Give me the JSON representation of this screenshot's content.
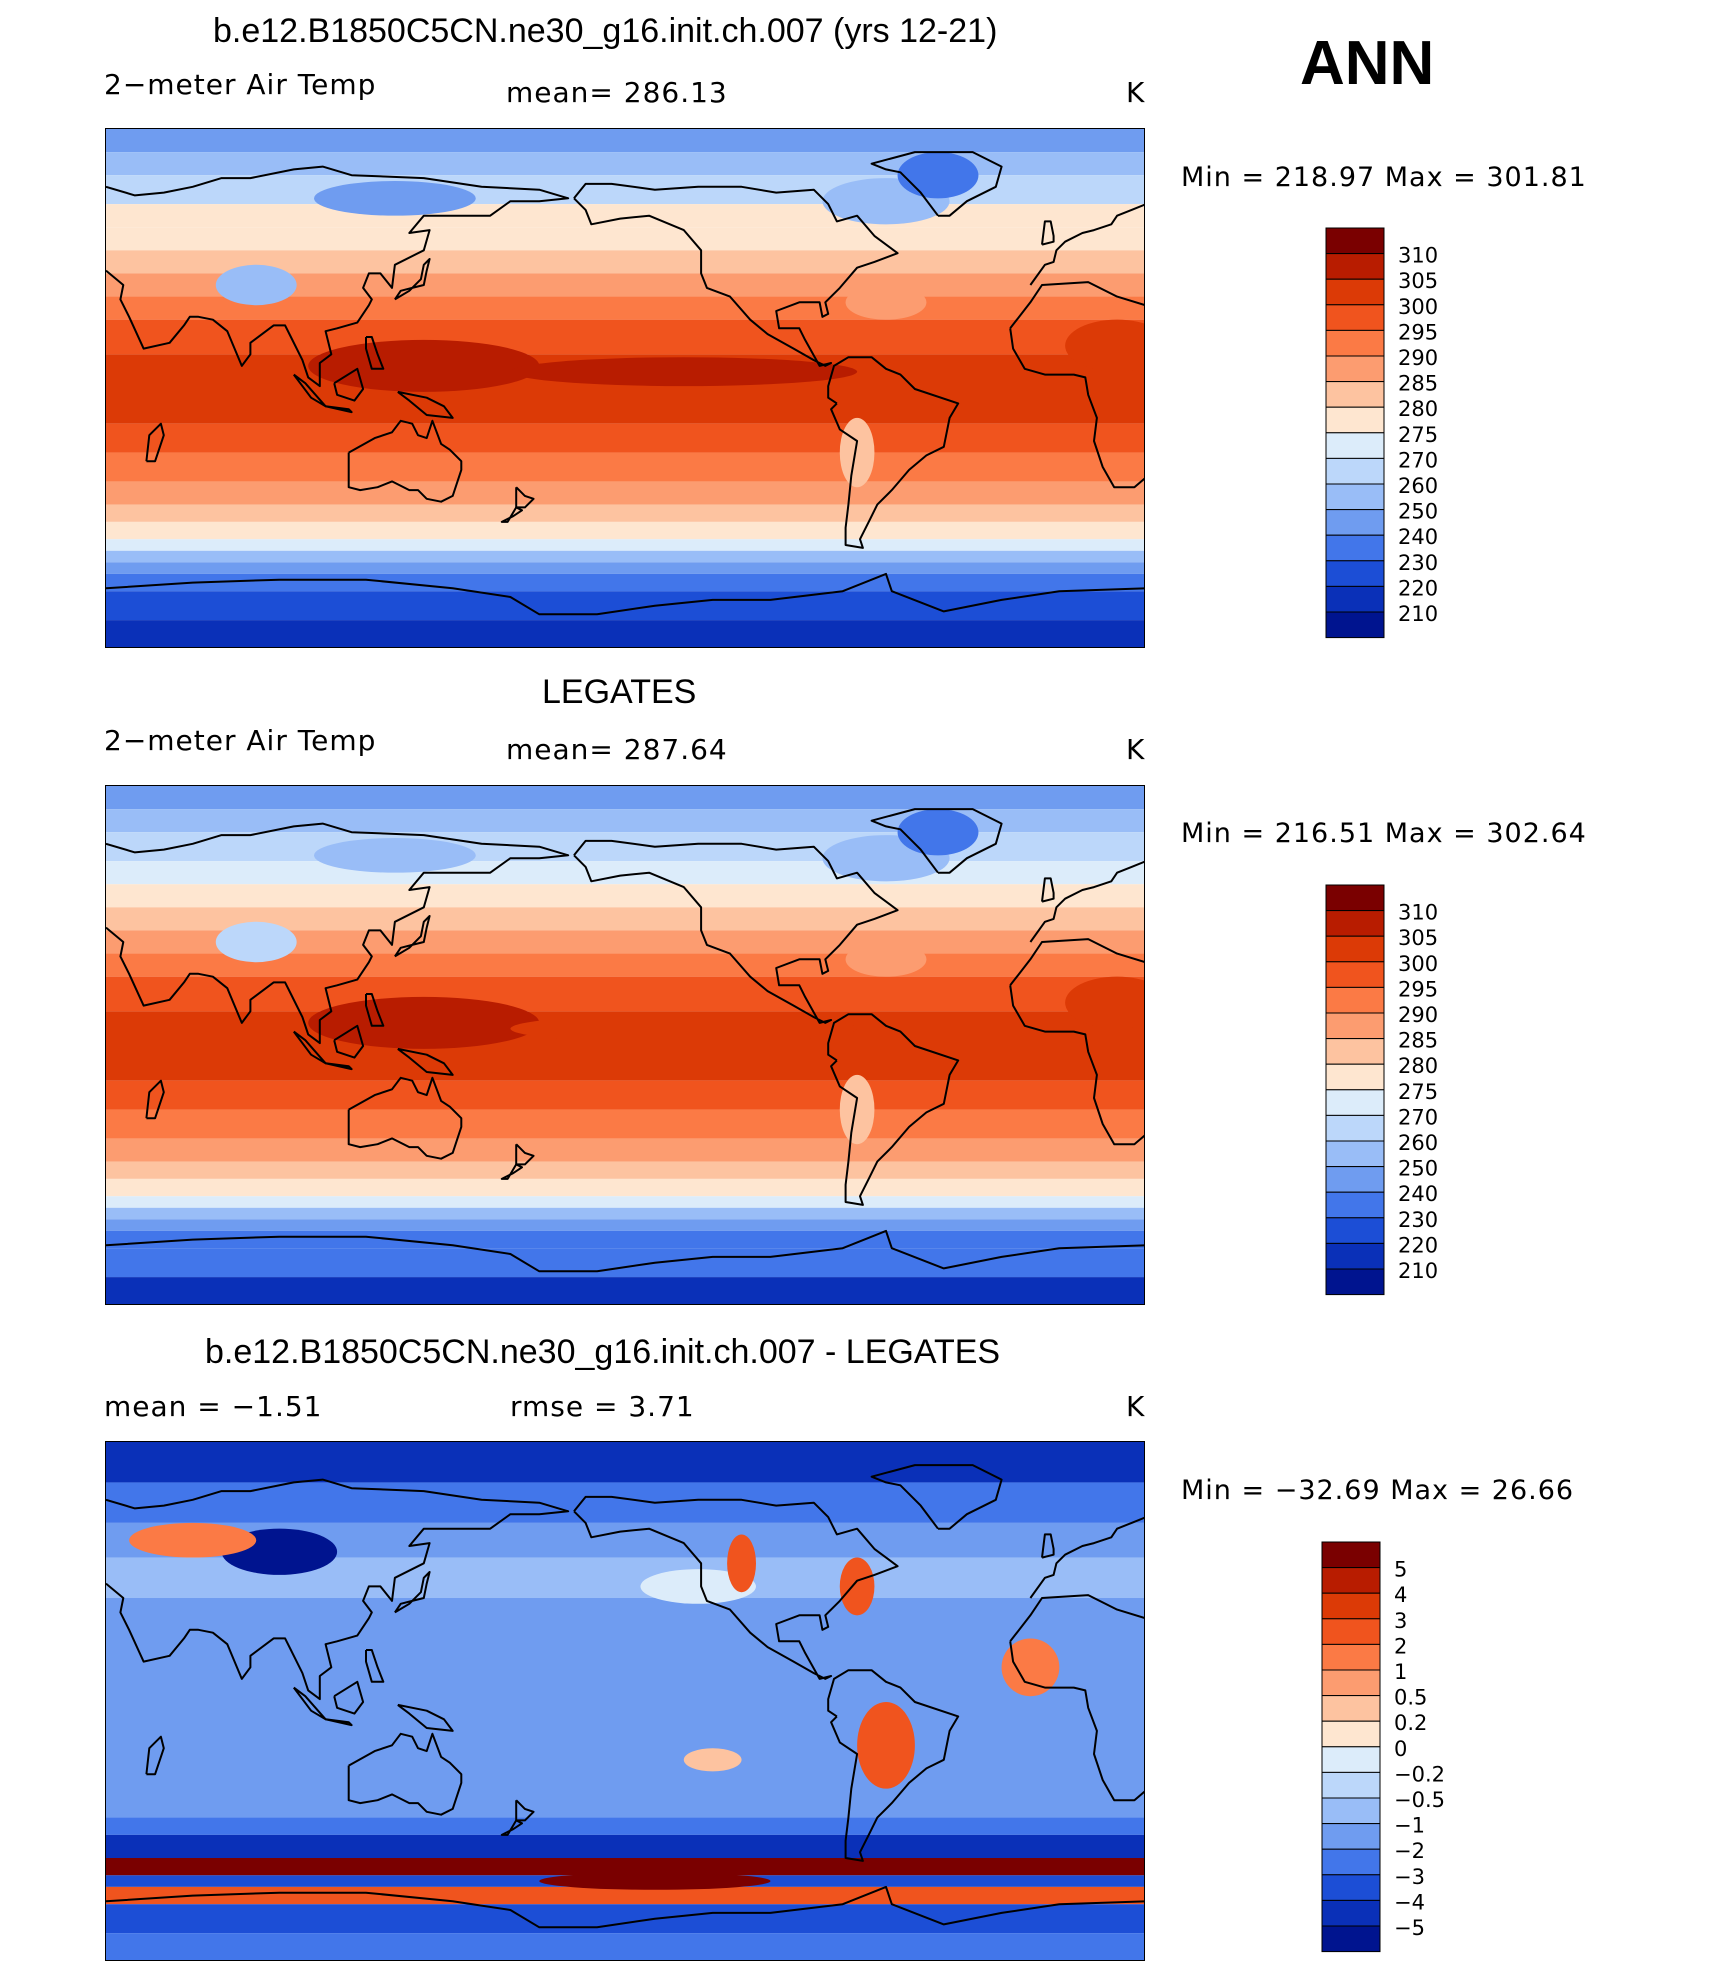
{
  "header": {
    "ann": "ANN"
  },
  "panels": [
    {
      "title": "b.e12.B1850C5CN.ne30_g16.init.ch.007 (yrs 12-21)",
      "left": "2−meter Air Temp",
      "center": "mean=  286.13",
      "right": "K",
      "minmax": "Min  =  218.97  Max  =  301.81",
      "colorbar": {
        "labels": [
          "310",
          "305",
          "300",
          "295",
          "290",
          "285",
          "280",
          "275",
          "270",
          "260",
          "250",
          "240",
          "230",
          "220",
          "210"
        ],
        "colors": [
          "#7a0000",
          "#b81c00",
          "#dc3a06",
          "#f0541e",
          "#fb7a45",
          "#fc9c70",
          "#fdc3a0",
          "#fee6d0",
          "#dcecfa",
          "#bcd7fa",
          "#99bdf7",
          "#6f9cf0",
          "#4276ea",
          "#1c4ed6",
          "#0a30b8",
          "#00148f"
        ]
      },
      "map": "temp"
    },
    {
      "title": "LEGATES",
      "left": "2−meter Air Temp",
      "center": "mean=  287.64",
      "right": "K",
      "minmax": "Min  =  216.51  Max  =  302.64",
      "colorbar": {
        "labels": [
          "310",
          "305",
          "300",
          "295",
          "290",
          "285",
          "280",
          "275",
          "270",
          "260",
          "250",
          "240",
          "230",
          "220",
          "210"
        ],
        "colors": [
          "#7a0000",
          "#b81c00",
          "#dc3a06",
          "#f0541e",
          "#fb7a45",
          "#fc9c70",
          "#fdc3a0",
          "#fee6d0",
          "#dcecfa",
          "#bcd7fa",
          "#99bdf7",
          "#6f9cf0",
          "#4276ea",
          "#1c4ed6",
          "#0a30b8",
          "#00148f"
        ]
      },
      "map": "temp"
    },
    {
      "title": "b.e12.B1850C5CN.ne30_g16.init.ch.007 - LEGATES",
      "left": "mean  =    −1.51",
      "center": "rmse  =     3.71",
      "right": "K",
      "minmax": "Min  =  −32.69  Max  =    26.66",
      "colorbar": {
        "labels": [
          "5",
          "4",
          "3",
          "2",
          "1",
          "0.5",
          "0.2",
          "0",
          "−0.2",
          "−0.5",
          "−1",
          "−2",
          "−3",
          "−4",
          "−5"
        ],
        "colors": [
          "#7a0000",
          "#b81c00",
          "#dc3a06",
          "#f0541e",
          "#fb7a45",
          "#fc9c70",
          "#fdc3a0",
          "#fee6d0",
          "#dcecfa",
          "#bcd7fa",
          "#99bdf7",
          "#6f9cf0",
          "#4276ea",
          "#1c4ed6",
          "#0a30b8",
          "#00148f"
        ]
      },
      "map": "diff"
    }
  ],
  "chart_data": [
    {
      "type": "heatmap",
      "title": "b.e12.B1850C5CN.ne30_g16.init.ch.007 (yrs 12-21)",
      "variable": "2−meter Air Temp",
      "units": "K",
      "mean": 286.13,
      "min": 218.97,
      "max": 301.81,
      "contour_levels": [
        210,
        220,
        230,
        240,
        250,
        260,
        270,
        275,
        280,
        285,
        290,
        295,
        300,
        305,
        310
      ],
      "season": "ANN"
    },
    {
      "type": "heatmap",
      "title": "LEGATES",
      "variable": "2−meter Air Temp",
      "units": "K",
      "mean": 287.64,
      "min": 216.51,
      "max": 302.64,
      "contour_levels": [
        210,
        220,
        230,
        240,
        250,
        260,
        270,
        275,
        280,
        285,
        290,
        295,
        300,
        305,
        310
      ],
      "season": "ANN"
    },
    {
      "type": "heatmap",
      "title": "b.e12.B1850C5CN.ne30_g16.init.ch.007 - LEGATES",
      "units": "K",
      "mean": -1.51,
      "rmse": 3.71,
      "min": -32.69,
      "max": 26.66,
      "contour_levels": [
        -5,
        -4,
        -3,
        -2,
        -1,
        -0.5,
        -0.2,
        0,
        0.2,
        0.5,
        1,
        2,
        3,
        4,
        5
      ],
      "season": "ANN"
    }
  ]
}
